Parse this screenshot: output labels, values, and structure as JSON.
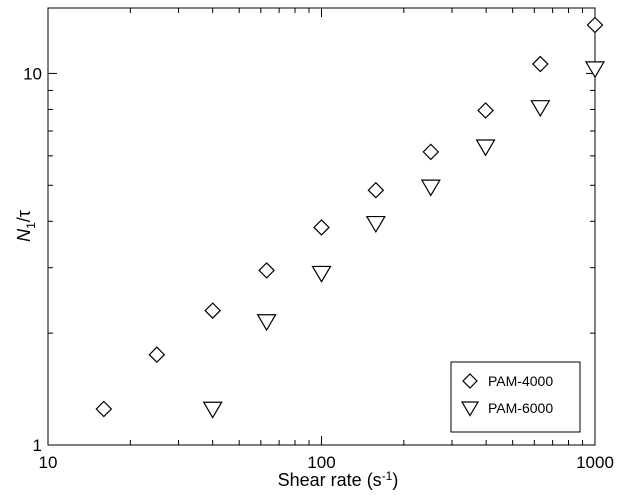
{
  "chart_data": {
    "type": "scatter",
    "xscale": "log",
    "yscale": "log",
    "xlim": [
      10,
      1000
    ],
    "ylim": [
      1,
      15
    ],
    "xticks": [
      {
        "value": 10,
        "label": "10"
      },
      {
        "value": 100,
        "label": "100"
      },
      {
        "value": 1000,
        "label": "1000"
      }
    ],
    "yticks": [
      {
        "value": 1,
        "label": "1"
      },
      {
        "value": 10,
        "label": "10"
      }
    ],
    "xlabel": "Shear rate (s",
    "xlabel_sup": "-1",
    "xlabel_end": ")",
    "ylabel_var": "N",
    "ylabel_sub": "1",
    "ylabel_rest": "/τ",
    "legend_position": "bottom-right",
    "grid": false,
    "series": [
      {
        "name": "PAM-4000",
        "marker": "diamond",
        "x": [
          16,
          25,
          40,
          63,
          100,
          158,
          251,
          398,
          631,
          1000
        ],
        "y": [
          1.25,
          1.75,
          2.3,
          2.95,
          3.85,
          4.85,
          6.15,
          7.95,
          10.6,
          13.5
        ]
      },
      {
        "name": "PAM-6000",
        "marker": "triangle-down",
        "x": [
          40,
          63,
          100,
          158,
          251,
          398,
          631,
          1000
        ],
        "y": [
          1.25,
          2.15,
          2.9,
          3.95,
          4.95,
          6.35,
          8.1,
          10.3
        ]
      }
    ]
  }
}
